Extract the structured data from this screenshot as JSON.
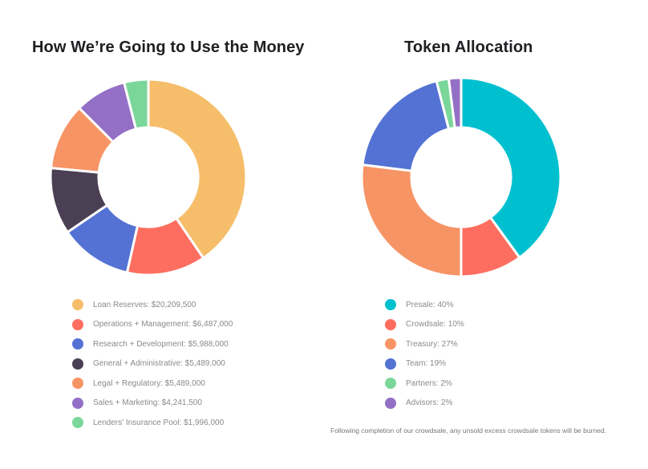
{
  "chart_data": [
    {
      "type": "pie",
      "title": "How We’re Going to Use the Money",
      "categories": [
        "Loan Reserves",
        "Operations + Management",
        "Research + Development",
        "General + Administrative",
        "Legal + Regulatory",
        "Sales + Marketing",
        "Lenders' Insurance Pool"
      ],
      "values": [
        20209500,
        6487000,
        5988000,
        5489000,
        5489000,
        4241500,
        1996000
      ],
      "labels": [
        "Loan Reserves: $20,209,500",
        "Operations + Management: $6,487,000",
        "Research + Development: $5,988,000",
        "General + Administrative: $5,489,000",
        "Legal + Regulatory: $5,489,000",
        "Sales + Marketing: $4,241,500",
        "Lenders' Insurance Pool: $1,996,000"
      ],
      "colors": [
        "#F6BE6A",
        "#FE6E60",
        "#5372D3",
        "#4A3F53",
        "#F79465",
        "#9370C6",
        "#7BD69A"
      ],
      "legend_position": "bottom",
      "donut": true
    },
    {
      "type": "pie",
      "title": "Token Allocation",
      "categories": [
        "Presale",
        "Crowdsale",
        "Treasury",
        "Team",
        "Partners",
        "Advisors"
      ],
      "values": [
        40,
        10,
        27,
        19,
        2,
        2
      ],
      "labels": [
        "Presale: 40%",
        "Crowdsale: 10%",
        "Treasury: 27%",
        "Team: 19%",
        "Partners: 2%",
        "Advisors: 2%"
      ],
      "colors": [
        "#00C0D0",
        "#FE6E60",
        "#F79465",
        "#5372D3",
        "#7BD69A",
        "#9370C6"
      ],
      "legend_position": "bottom",
      "donut": true
    }
  ],
  "footnote": "Following completion of our crowdsale, any unsold excess crowdsale tokens will be burned."
}
